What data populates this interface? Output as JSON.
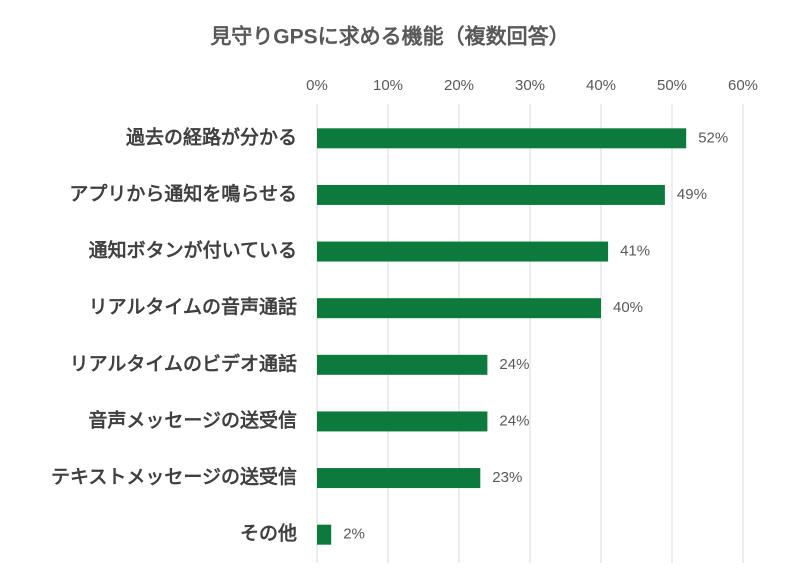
{
  "chart_data": {
    "type": "bar",
    "orientation": "horizontal",
    "title": "見守りGPSに求める機能（複数回答）",
    "categories": [
      "過去の経路が分かる",
      "アプリから通知を鳴らせる",
      "通知ボタンが付いている",
      "リアルタイムの音声通話",
      "リアルタイムのビデオ通話",
      "音声メッセージの送受信",
      "テキストメッセージの送受信",
      "その他"
    ],
    "values": [
      52,
      49,
      41,
      40,
      24,
      24,
      23,
      2
    ],
    "value_labels": [
      "52%",
      "49%",
      "41%",
      "40%",
      "24%",
      "24%",
      "23%",
      "2%"
    ],
    "color": "#0b7a3c",
    "xlim": [
      0,
      60
    ],
    "xticks": [
      {
        "value": 0,
        "label": "0%"
      },
      {
        "value": 10,
        "label": "10%"
      },
      {
        "value": 20,
        "label": "20%"
      },
      {
        "value": 30,
        "label": "30%"
      },
      {
        "value": 40,
        "label": "40%"
      },
      {
        "value": 50,
        "label": "50%"
      },
      {
        "value": 60,
        "label": "60%"
      }
    ],
    "grid": true
  }
}
